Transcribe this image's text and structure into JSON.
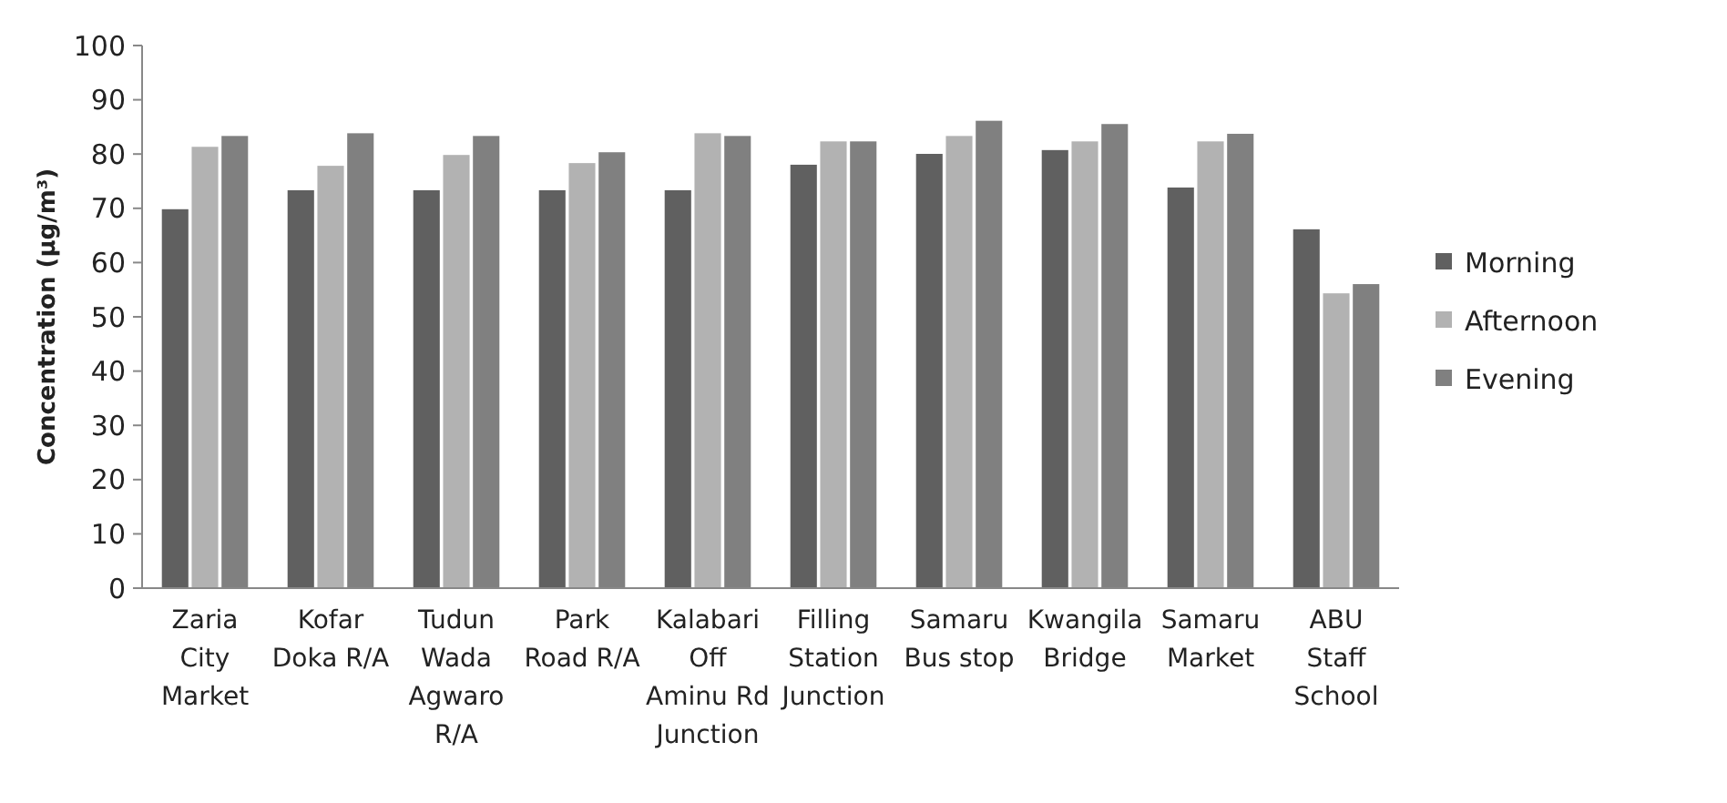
{
  "chart_data": {
    "type": "bar",
    "ylabel": "Concentration (µg/m³)",
    "categories": [
      "Zaria City Market",
      "Kofar Doka R/A",
      "Tudun Wada Agwaro R/A",
      "Park Road R/A",
      "Kalabari Off Aminu Rd Junction",
      "Filling Station Junction",
      "Samaru Bus stop",
      "Kwangila Bridge",
      "Samaru Market",
      "ABU Staff School"
    ],
    "series": [
      {
        "name": "Morning",
        "color": "#606060",
        "values": [
          70,
          73.5,
          73.5,
          73.5,
          73.5,
          78.2,
          80.2,
          80.9,
          74,
          66.3
        ]
      },
      {
        "name": "Afternoon",
        "color": "#b2b2b2",
        "values": [
          81.5,
          78,
          80,
          78.5,
          84,
          82.5,
          83.5,
          82.5,
          82.5,
          54.5
        ]
      },
      {
        "name": "Evening",
        "color": "#808080",
        "values": [
          83.5,
          84,
          83.5,
          80.5,
          83.5,
          82.5,
          86.3,
          85.7,
          83.9,
          56.2
        ]
      }
    ],
    "ylim": [
      0,
      100
    ],
    "yticks": [
      0,
      10,
      20,
      30,
      40,
      50,
      60,
      70,
      80,
      90,
      100
    ],
    "legend": "right"
  }
}
